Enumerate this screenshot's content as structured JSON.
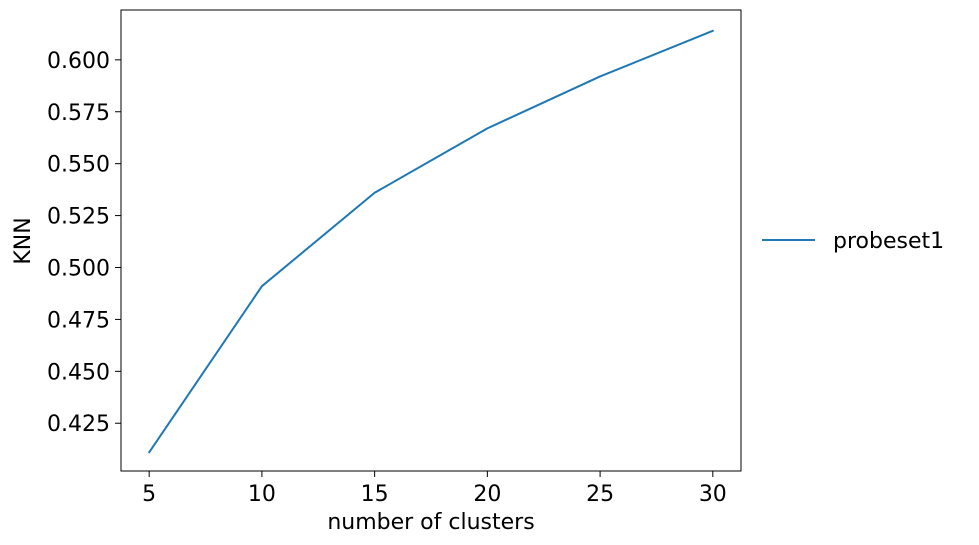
{
  "chart_data": {
    "type": "line",
    "title": "",
    "xlabel": "number of clusters",
    "ylabel": "KNN",
    "xlim": [
      3.75,
      31.25
    ],
    "ylim": [
      0.402,
      0.624
    ],
    "xticks": [
      5,
      10,
      15,
      20,
      25,
      30
    ],
    "yticks": [
      0.425,
      0.45,
      0.475,
      0.5,
      0.525,
      0.55,
      0.575,
      0.6
    ],
    "ytick_labels": [
      "0.425",
      "0.450",
      "0.475",
      "0.500",
      "0.525",
      "0.550",
      "0.575",
      "0.600"
    ],
    "grid": false,
    "legend_position": "outside-right",
    "series": [
      {
        "name": "probeset1",
        "color": "#1f77b4",
        "x": [
          5,
          10,
          15,
          20,
          25,
          30
        ],
        "y": [
          0.411,
          0.491,
          0.536,
          0.567,
          0.592,
          0.614
        ]
      }
    ]
  }
}
